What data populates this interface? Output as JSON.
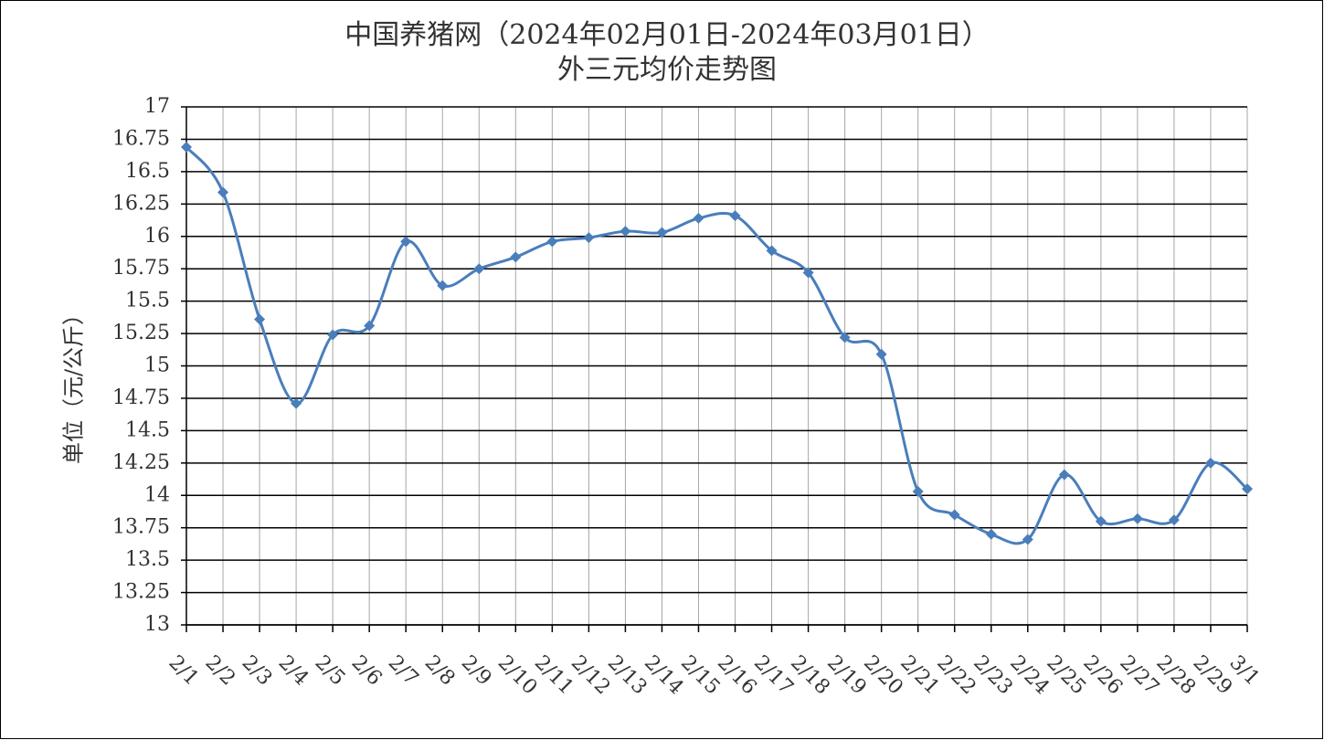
{
  "chart_data": {
    "type": "line",
    "title": "中国养猪网（2024年02月01日-2024年03月01日）",
    "subtitle": "外三元均价走势图",
    "y_label": "单位（元/公斤）",
    "categories": [
      "2/1",
      "2/2",
      "2/3",
      "2/4",
      "2/5",
      "2/6",
      "2/7",
      "2/8",
      "2/9",
      "2/10",
      "2/11",
      "2/12",
      "2/13",
      "2/14",
      "2/15",
      "2/16",
      "2/17",
      "2/18",
      "2/19",
      "2/20",
      "2/21",
      "2/22",
      "2/23",
      "2/24",
      "2/25",
      "2/26",
      "2/27",
      "2/28",
      "2/29",
      "3/1"
    ],
    "series": [
      {
        "name": "外三元均价",
        "color": "#4a7ebb",
        "values": [
          16.69,
          16.34,
          15.36,
          14.71,
          15.24,
          15.31,
          15.96,
          15.62,
          15.75,
          15.84,
          15.96,
          15.99,
          16.04,
          16.03,
          16.14,
          16.16,
          15.89,
          15.72,
          15.22,
          15.09,
          14.03,
          13.85,
          13.7,
          13.66,
          14.16,
          13.8,
          13.82,
          13.81,
          14.25,
          14.05
        ]
      }
    ],
    "ylim": [
      13,
      17
    ],
    "yticks": [
      13,
      13.25,
      13.5,
      13.75,
      14,
      14.25,
      14.5,
      14.75,
      15,
      15.25,
      15.5,
      15.75,
      16,
      16.25,
      16.5,
      16.75,
      17
    ],
    "grid": true,
    "smooth": true,
    "marker": "diamond"
  }
}
